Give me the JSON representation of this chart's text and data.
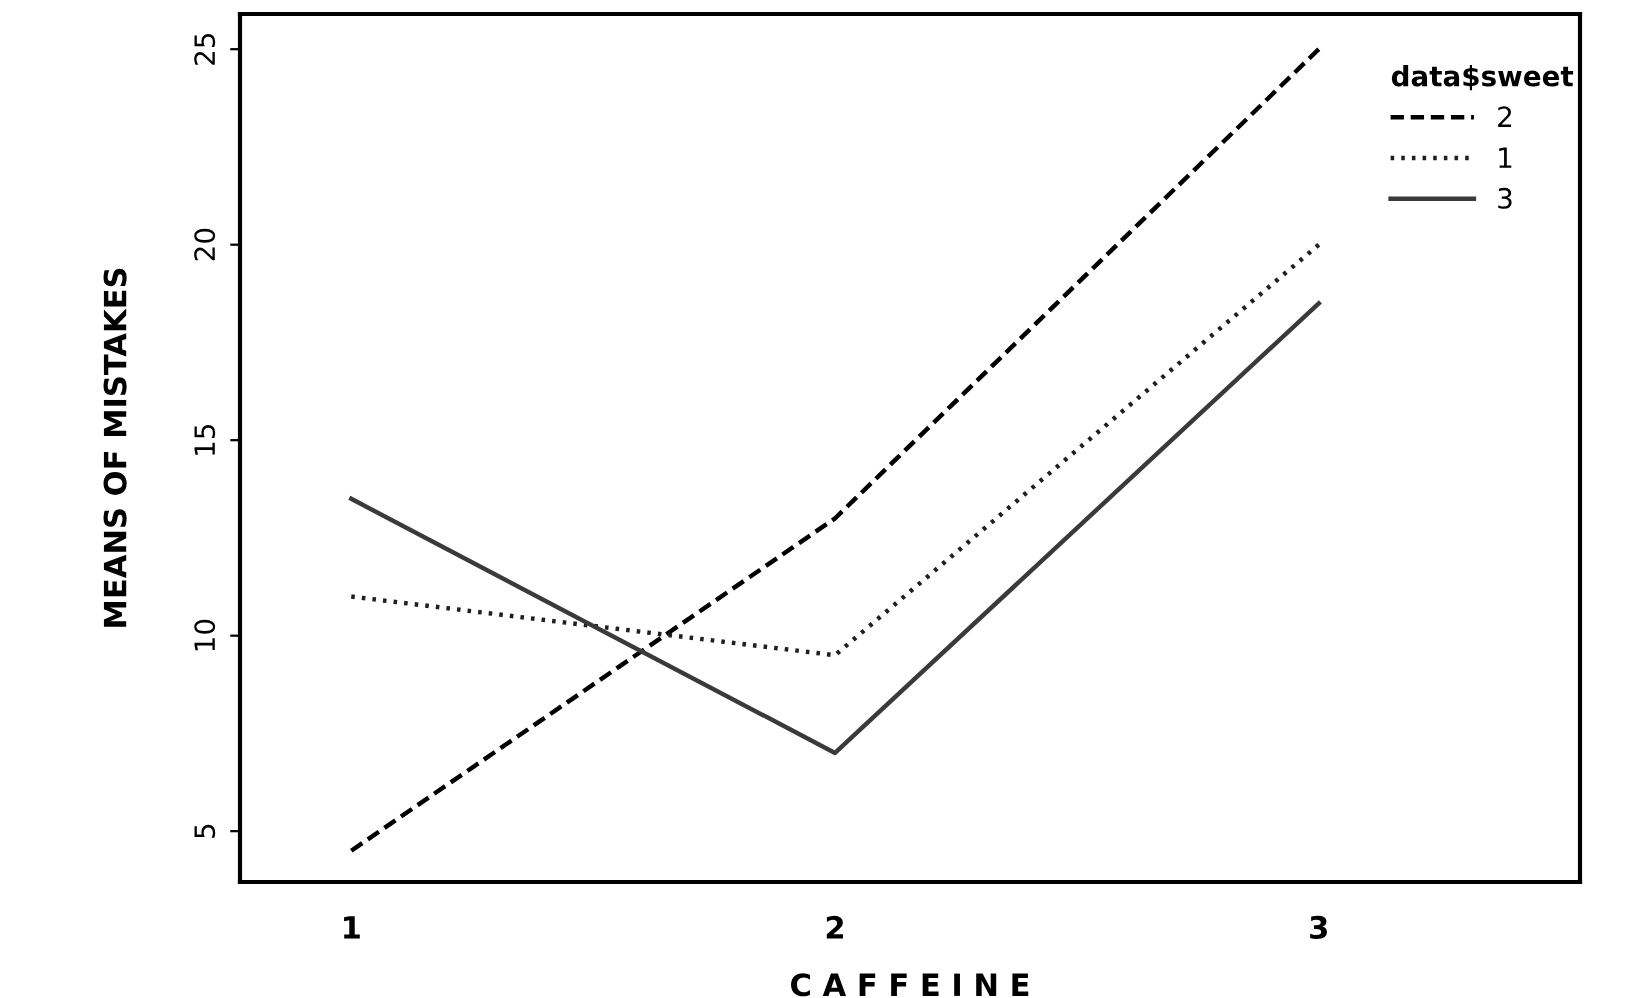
{
  "chart_data": {
    "type": "line",
    "xlabel": "C A F F E I N E",
    "ylabel": "MEANS OF MISTAKES",
    "legend_title": "data$sweet",
    "x": [
      1,
      2,
      3
    ],
    "series": [
      {
        "name": "2",
        "color": "#000000",
        "line_style": "dashed",
        "values": [
          4.5,
          13,
          25
        ]
      },
      {
        "name": "1",
        "color": "#1f1f1f",
        "line_style": "dotted",
        "values": [
          11,
          9.5,
          20
        ]
      },
      {
        "name": "3",
        "color": "#3a3a3a",
        "line_style": "solid",
        "values": [
          13.5,
          7,
          18.5
        ]
      }
    ],
    "xlim": [
      0.77,
      3.54
    ],
    "xticks": [
      1,
      2,
      3
    ],
    "ylim": [
      3.7,
      25.9
    ],
    "yticks": [
      5,
      10,
      15,
      20,
      25
    ],
    "grid": false,
    "legend": "top right",
    "marker": "none"
  }
}
